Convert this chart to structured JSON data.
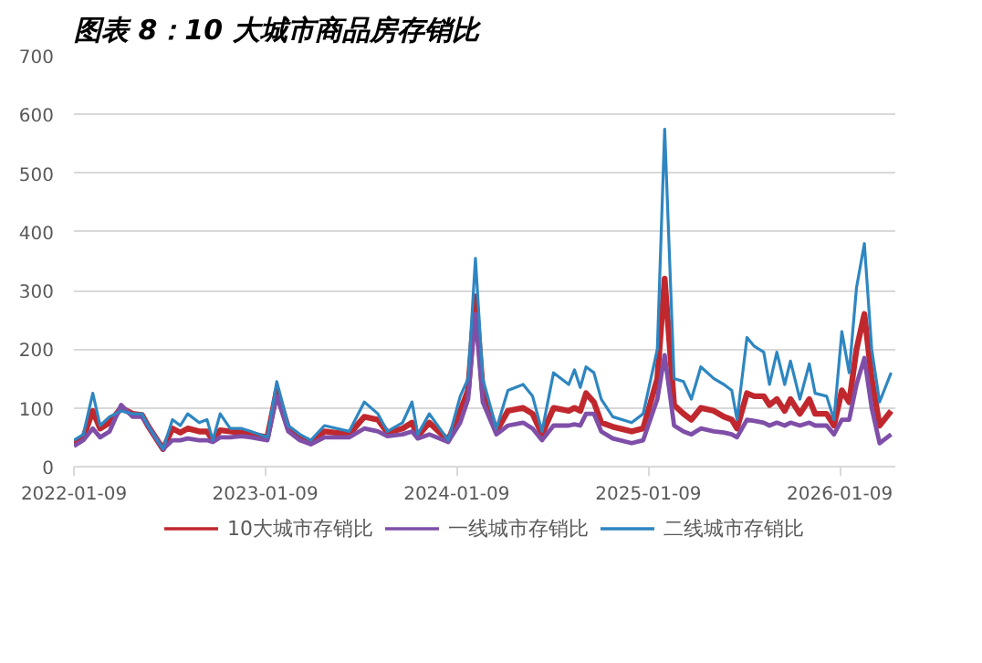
{
  "chart_data": {
    "type": "line",
    "title": "图表 8：10 大城市商品房存销比",
    "x": [
      "2022-01-09",
      "2022-01-27",
      "2022-02-14",
      "2022-02-28",
      "2022-03-18",
      "2022-04-09",
      "2022-05-01",
      "2022-05-19",
      "2022-05-30",
      "2022-06-28",
      "2022-07-16",
      "2022-07-31",
      "2022-08-14",
      "2022-09-05",
      "2022-09-20",
      "2022-10-01",
      "2022-10-15",
      "2022-11-03",
      "2022-11-25",
      "2022-12-13",
      "2023-01-13",
      "2023-01-31",
      "2023-02-22",
      "2023-03-16",
      "2023-04-06",
      "2023-05-02",
      "2023-06-18",
      "2023-07-17",
      "2023-08-12",
      "2023-08-30",
      "2023-09-28",
      "2023-10-16",
      "2023-10-27",
      "2023-11-18",
      "2023-12-24",
      "2024-01-16",
      "2024-01-31",
      "2024-02-14",
      "2024-02-28",
      "2024-03-25",
      "2024-04-16",
      "2024-05-15",
      "2024-06-02",
      "2024-06-20",
      "2024-07-12",
      "2024-08-10",
      "2024-08-21",
      "2024-09-01",
      "2024-09-12",
      "2024-09-27",
      "2024-10-11",
      "2024-11-02",
      "2024-12-08",
      "2024-12-30",
      "2025-01-26",
      "2025-02-09",
      "2025-02-27",
      "2025-03-17",
      "2025-04-01",
      "2025-04-19",
      "2025-05-14",
      "2025-06-02",
      "2025-06-17",
      "2025-06-27",
      "2025-07-16",
      "2025-07-30",
      "2025-08-17",
      "2025-08-28",
      "2025-09-11",
      "2025-09-26",
      "2025-10-07",
      "2025-10-25",
      "2025-11-12",
      "2025-11-23",
      "2025-12-15",
      "2025-12-29",
      "2026-01-13",
      "2026-01-27",
      "2026-02-10",
      "2026-02-25",
      "2026-03-11",
      "2026-03-26",
      "2026-04-17"
    ],
    "series": [
      {
        "name": "10大城市存销比",
        "color": "#c0282e",
        "values": [
          40,
          50,
          95,
          65,
          75,
          100,
          90,
          88,
          70,
          30,
          65,
          58,
          65,
          60,
          60,
          45,
          62,
          60,
          58,
          55,
          50,
          130,
          65,
          50,
          42,
          60,
          55,
          85,
          80,
          58,
          65,
          75,
          52,
          75,
          45,
          95,
          130,
          290,
          130,
          60,
          95,
          100,
          90,
          55,
          100,
          95,
          100,
          95,
          125,
          110,
          75,
          68,
          60,
          65,
          150,
          320,
          105,
          90,
          80,
          100,
          95,
          85,
          80,
          65,
          125,
          120,
          120,
          105,
          115,
          95,
          115,
          90,
          115,
          90,
          90,
          70,
          130,
          110,
          200,
          260,
          150,
          70,
          95
        ]
      },
      {
        "name": "一线城市存销比",
        "color": "#7f4fa8",
        "values": [
          35,
          45,
          65,
          50,
          60,
          105,
          85,
          85,
          70,
          30,
          45,
          45,
          48,
          45,
          45,
          42,
          50,
          50,
          52,
          50,
          45,
          120,
          60,
          45,
          38,
          50,
          50,
          65,
          60,
          52,
          55,
          60,
          48,
          55,
          42,
          75,
          115,
          260,
          110,
          55,
          70,
          75,
          65,
          45,
          70,
          70,
          72,
          70,
          90,
          90,
          60,
          48,
          40,
          45,
          115,
          190,
          70,
          60,
          55,
          65,
          60,
          58,
          55,
          50,
          80,
          78,
          75,
          70,
          75,
          70,
          75,
          70,
          75,
          70,
          70,
          55,
          80,
          80,
          140,
          185,
          100,
          40,
          55
        ]
      },
      {
        "name": "二线城市存销比",
        "color": "#2e86c1",
        "values": [
          45,
          55,
          125,
          70,
          85,
          95,
          90,
          90,
          70,
          30,
          80,
          70,
          90,
          75,
          80,
          45,
          90,
          65,
          65,
          60,
          50,
          145,
          70,
          55,
          45,
          70,
          60,
          110,
          90,
          60,
          75,
          110,
          55,
          90,
          45,
          120,
          150,
          355,
          150,
          65,
          130,
          140,
          120,
          60,
          160,
          140,
          165,
          135,
          170,
          160,
          115,
          85,
          75,
          90,
          200,
          575,
          150,
          145,
          115,
          170,
          150,
          140,
          130,
          80,
          220,
          205,
          195,
          140,
          195,
          140,
          180,
          115,
          175,
          125,
          120,
          80,
          230,
          160,
          305,
          380,
          200,
          110,
          160
        ]
      }
    ],
    "xlim": [
      "2022-01-09",
      "2026-04-25"
    ],
    "xticks": [
      "2022-01-09",
      "2023-01-09",
      "2024-01-09",
      "2025-01-09",
      "2026-01-09"
    ],
    "ylim": [
      0,
      700
    ],
    "yticks": [
      0,
      100,
      200,
      300,
      400,
      500,
      600,
      700
    ],
    "grid": "y",
    "legend": "bottom"
  }
}
